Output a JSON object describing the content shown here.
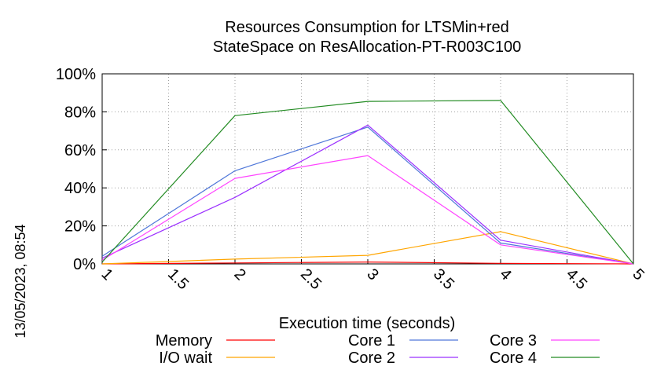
{
  "chart_data": {
    "type": "line",
    "title": [
      "Resources Consumption for LTSMin+red",
      "StateSpace on ResAllocation-PT-R003C100"
    ],
    "xlabel": "Execution time (seconds)",
    "ylabel": "",
    "xlim": [
      1,
      5
    ],
    "ylim": [
      0,
      100
    ],
    "xticks": [
      "1",
      "1.5",
      "2",
      "2.5",
      "3",
      "3.5",
      "4",
      "4.5",
      "5"
    ],
    "yticks": [
      "0%",
      "20%",
      "40%",
      "60%",
      "80%",
      "100%"
    ],
    "grid": true,
    "legend_position": "bottom",
    "timestamp": "13/05/2023, 08:54",
    "x": [
      1,
      2,
      3,
      4,
      5
    ],
    "series": [
      {
        "name": "Memory",
        "color": "#ff0000",
        "values": [
          0,
          0.5,
          1,
          0.3,
          0
        ]
      },
      {
        "name": "I/O wait",
        "color": "#ffa500",
        "values": [
          0,
          2.5,
          4.5,
          17,
          0
        ]
      },
      {
        "name": "Core 1",
        "color": "#4f77d9",
        "values": [
          4,
          49,
          72,
          11,
          0
        ]
      },
      {
        "name": "Core 2",
        "color": "#9b30ff",
        "values": [
          3,
          35,
          73,
          12.5,
          0
        ]
      },
      {
        "name": "Core 3",
        "color": "#ff44ff",
        "values": [
          2,
          45,
          57,
          10,
          0
        ]
      },
      {
        "name": "Core 4",
        "color": "#228b22",
        "values": [
          1,
          78,
          85.5,
          86,
          0
        ]
      }
    ]
  }
}
